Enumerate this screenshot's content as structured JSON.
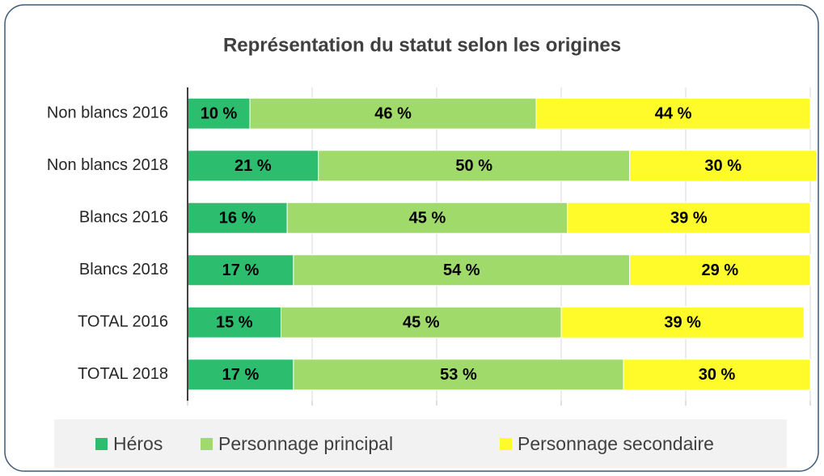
{
  "chart_data": {
    "type": "stacked-bar-horizontal",
    "title": "Représentation du statut selon les origines",
    "categories": [
      "Non blancs 2016",
      "Non blancs 2018",
      "Blancs 2016",
      "Blancs 2018",
      "TOTAL 2016",
      "TOTAL 2018"
    ],
    "series": [
      {
        "name": "Héros",
        "color": "#2dbd6e",
        "values": [
          10,
          21,
          16,
          17,
          15,
          17
        ],
        "value_labels": [
          "10 %",
          "21 %",
          "16 %",
          "17 %",
          "15 %",
          "17 %"
        ]
      },
      {
        "name": "Personnage principal",
        "color": "#9fda6b",
        "values": [
          46,
          50,
          45,
          54,
          45,
          53
        ],
        "value_labels": [
          "46 %",
          "50 %",
          "45 %",
          "54 %",
          "45 %",
          "53 %"
        ]
      },
      {
        "name": "Personnage secondaire",
        "color": "#fffb2a",
        "values": [
          44,
          30,
          39,
          29,
          39,
          30
        ],
        "value_labels": [
          "44 %",
          "30 %",
          "39 %",
          "29 %",
          "39 %",
          "30 %"
        ]
      }
    ],
    "xlim": [
      0,
      100
    ],
    "xticks": [
      0,
      20,
      40,
      60,
      80,
      100
    ],
    "grid": true,
    "legend": "bottom"
  }
}
